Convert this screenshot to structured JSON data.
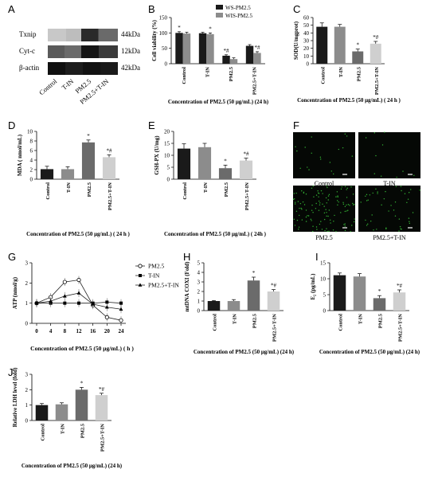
{
  "panel_letters": [
    "A",
    "B",
    "C",
    "D",
    "E",
    "F",
    "G",
    "H",
    "I",
    "J"
  ],
  "western_blot": {
    "proteins": [
      "Txnip",
      "Cyt-c",
      "β-actin"
    ],
    "sizes": [
      "44kDa",
      "12kDa",
      "42kDa"
    ],
    "lanes": [
      "Control",
      "T-IN",
      "PM2.5",
      "PM2.5+T-IN"
    ]
  },
  "fluorescence": {
    "captions": [
      "Control",
      "T-IN",
      "PM2.5",
      "PM2.5+T-IN"
    ]
  },
  "colors": {
    "black": "#1a1a1a",
    "gray": "#8c8c8c",
    "dark_gray": "#6b6b6b",
    "light_gray": "#cfcfcf",
    "green_dots": "#3fdc3f"
  },
  "chart_data": [
    {
      "panel": "B",
      "type": "bar",
      "categories": [
        "Control",
        "T-IN",
        "PM2.5",
        "PM2.5+T-IN"
      ],
      "series": [
        {
          "name": "WS-PM2.5",
          "values": [
            100,
            99,
            26,
            58
          ],
          "errors": [
            4,
            3,
            3,
            4
          ]
        },
        {
          "name": "WIS-PM2.5",
          "values": [
            98,
            96,
            15,
            35
          ],
          "errors": [
            4,
            4,
            4,
            4
          ]
        }
      ],
      "ylabel": "Cell viability (%)",
      "ylim": [
        0,
        150
      ],
      "yticks": [
        0,
        50,
        100,
        150
      ],
      "xlabel": "Concentration of PM2.5 (50 μg/mL) (24 h)",
      "annotations": [
        "*",
        "*",
        "*#",
        "*#"
      ],
      "legend": "top-right"
    },
    {
      "panel": "C",
      "type": "bar",
      "categories": [
        "Control",
        "T-IN",
        "PM2.5",
        "PM2.5+T-IN"
      ],
      "values": [
        48,
        48,
        16,
        26
      ],
      "errors": [
        5,
        3,
        3,
        3
      ],
      "ylabel": "SOD(U/mgprot)",
      "ylim": [
        0,
        60
      ],
      "yticks": [
        0,
        10,
        20,
        30,
        40,
        50,
        60
      ],
      "xlabel": "Concentration of PM2.5 (50 μg/mL) ( 24 h )",
      "annotations": [
        "",
        "",
        "*",
        "*#"
      ]
    },
    {
      "panel": "D",
      "type": "bar",
      "categories": [
        "Control",
        "T-IN",
        "PM2.5",
        "PM2.5+T-IN"
      ],
      "values": [
        2.1,
        2.1,
        7.7,
        4.6
      ],
      "errors": [
        0.6,
        0.5,
        0.5,
        0.5
      ],
      "ylabel": "MDA ( nmol/mL)",
      "ylim": [
        0,
        10
      ],
      "yticks": [
        0,
        2,
        4,
        6,
        8,
        10
      ],
      "xlabel": "Concentration of PM2.5 (50 μg/mL) ( 24 h )",
      "annotations": [
        "",
        "",
        "*",
        "*#"
      ]
    },
    {
      "panel": "E",
      "type": "bar",
      "categories": [
        "Control",
        "T-IN",
        "PM2.5",
        "PM2.5+T-IN"
      ],
      "values": [
        12.8,
        13.4,
        4.6,
        7.8
      ],
      "errors": [
        2.0,
        1.6,
        1.3,
        1.0
      ],
      "ylabel": "GSH-PX (U/mg)",
      "ylim": [
        0,
        20
      ],
      "yticks": [
        0,
        5,
        10,
        15,
        20
      ],
      "xlabel": "Concentration of PM2.5 (50 μg/mL) ( 24h )",
      "annotations": [
        "",
        "",
        "*",
        "*#"
      ]
    },
    {
      "panel": "G",
      "type": "line",
      "x": [
        0,
        4,
        8,
        12,
        16,
        20,
        24
      ],
      "series": [
        {
          "name": "PM2.5",
          "values": [
            1.0,
            1.3,
            2.05,
            2.15,
            0.9,
            0.3,
            0.15
          ]
        },
        {
          "name": "T-IN",
          "values": [
            1.0,
            1.0,
            1.0,
            1.0,
            1.0,
            1.05,
            1.0
          ]
        },
        {
          "name": "PM2.5+T-IN",
          "values": [
            1.0,
            1.1,
            1.35,
            1.5,
            0.95,
            0.8,
            0.7
          ]
        }
      ],
      "ylabel": "ATP (nmol/g)",
      "ylim": [
        0,
        3
      ],
      "yticks": [
        0,
        1,
        2,
        3
      ],
      "xlabel": "Concentration of PM2.5 (50 μg/mL) ( h )",
      "legend": "top-right"
    },
    {
      "panel": "H",
      "type": "bar",
      "categories": [
        "Control",
        "T-IN",
        "PM2.5",
        "PM2.5+T-IN"
      ],
      "values": [
        1.0,
        1.0,
        3.15,
        2.0
      ],
      "errors": [
        0.05,
        0.15,
        0.35,
        0.2
      ],
      "ylabel": "mtDNA COXI (Fold)",
      "ylim": [
        0,
        5
      ],
      "yticks": [
        0,
        1,
        2,
        3,
        4,
        5
      ],
      "xlabel": "Concentration of PM2.5 (50 μg/mL) (24 h)",
      "annotations": [
        "",
        "",
        "*",
        "*#"
      ]
    },
    {
      "panel": "I",
      "type": "bar",
      "categories": [
        "Control",
        "T-IN",
        "PM2.5",
        "PM2.5+T-IN"
      ],
      "values": [
        11.1,
        10.7,
        3.9,
        5.7
      ],
      "errors": [
        0.7,
        0.9,
        0.8,
        0.8
      ],
      "ylabel": "E₂ (pg/mL)",
      "ylim": [
        0,
        15
      ],
      "yticks": [
        0,
        5,
        10,
        15
      ],
      "xlabel": "Concentration of PM2.5 (50 μg/mL) (24 h)",
      "annotations": [
        "",
        "",
        "*",
        "*#"
      ]
    },
    {
      "panel": "J",
      "type": "bar",
      "categories": [
        "Control",
        "T-IN",
        "PM2.5",
        "PM2.5+T-IN"
      ],
      "values": [
        1.0,
        1.05,
        2.0,
        1.65
      ],
      "errors": [
        0.1,
        0.1,
        0.15,
        0.12
      ],
      "ylabel": "Relative LDH level (fold)",
      "ylim": [
        0,
        3
      ],
      "yticks": [
        0,
        1,
        2,
        3
      ],
      "xlabel": "Concentration of PM2.5 (50 μg/mL) (24 h)",
      "annotations": [
        "",
        "",
        "*",
        "*#"
      ]
    }
  ]
}
